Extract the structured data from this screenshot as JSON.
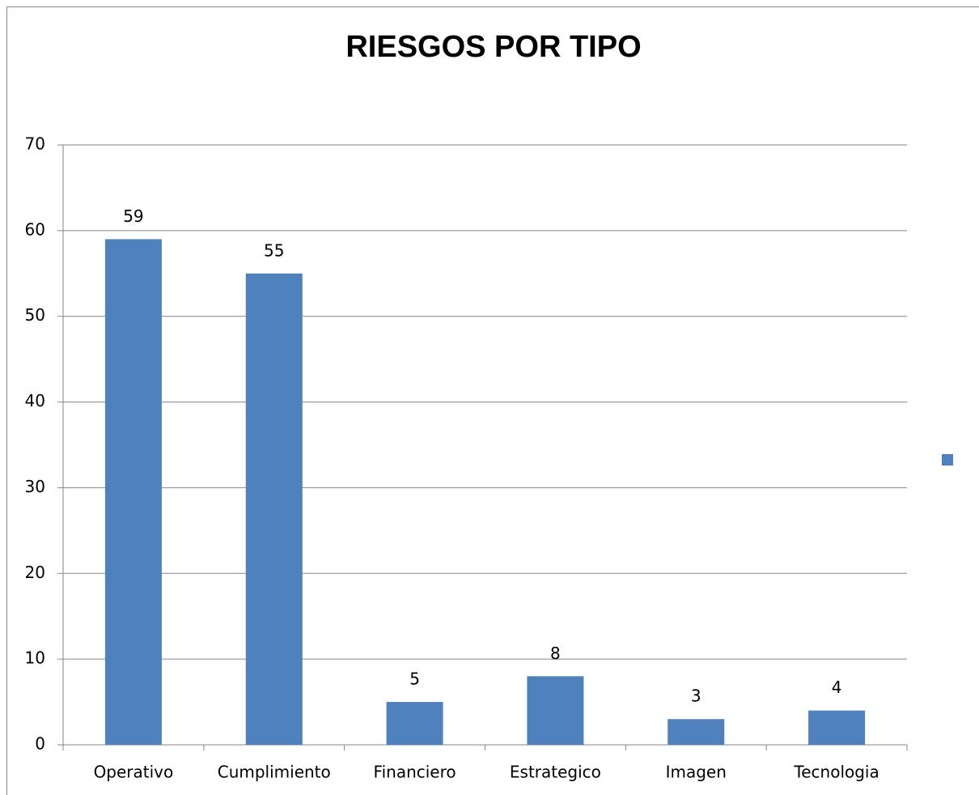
{
  "chart_data": {
    "type": "bar",
    "title": "RIESGOS POR TIPO",
    "categories": [
      "Operativo",
      "Cumplimiento",
      "Financiero",
      "Estrategico",
      "Imagen",
      "Tecnologia"
    ],
    "values": [
      59,
      55,
      5,
      8,
      3,
      4
    ],
    "color": "#4f81bd",
    "ylim": [
      0,
      70
    ],
    "yticks": [
      0,
      10,
      20,
      30,
      40,
      50,
      60,
      70
    ],
    "grid": true
  }
}
